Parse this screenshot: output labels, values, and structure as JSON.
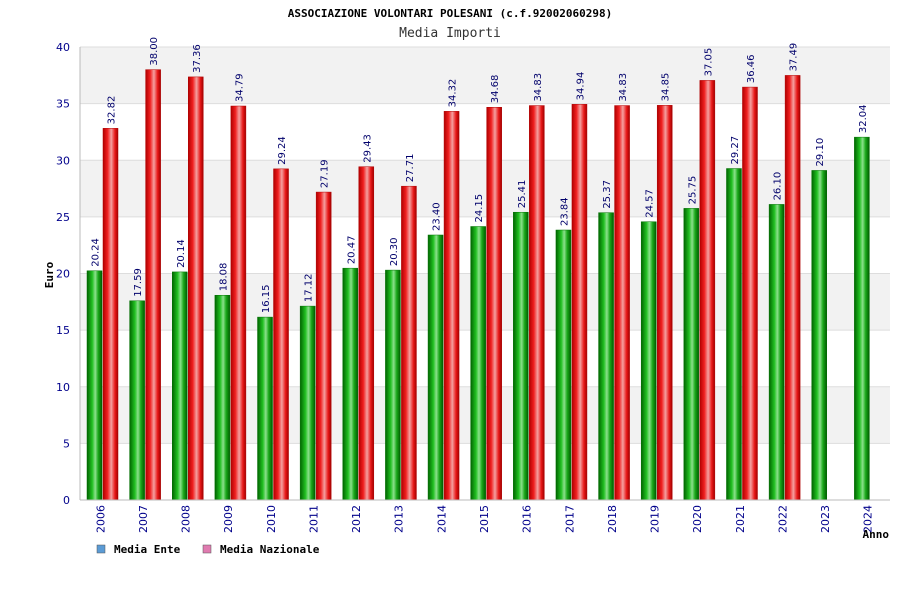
{
  "chart_data": {
    "type": "bar",
    "title": "ASSOCIAZIONE VOLONTARI POLESANI (c.f.92002060298)",
    "subtitle": "Media Importi",
    "ylabel": "Euro",
    "xlabel": "Anno",
    "ylim": [
      0,
      40
    ],
    "yticks": [
      0,
      5,
      10,
      15,
      20,
      25,
      30,
      35,
      40
    ],
    "categories": [
      "2006",
      "2007",
      "2008",
      "2009",
      "2010",
      "2011",
      "2012",
      "2013",
      "2014",
      "2015",
      "2016",
      "2017",
      "2018",
      "2019",
      "2020",
      "2021",
      "2022",
      "2023",
      "2024"
    ],
    "series": [
      {
        "name": "Media Ente",
        "color": "#00a000",
        "legend_color": "#5b9bd5",
        "values": [
          20.24,
          17.59,
          20.14,
          18.08,
          16.15,
          17.12,
          20.47,
          20.3,
          23.4,
          24.15,
          25.41,
          23.84,
          25.37,
          24.57,
          25.75,
          29.27,
          26.1,
          29.1,
          32.04
        ],
        "labels": [
          "20.24",
          "17.59",
          "20.14",
          "18.08",
          "16.15",
          "17.12",
          "20.47",
          "20.30",
          "23.40",
          "24.15",
          "25.41",
          "23.84",
          "25.37",
          "24.57",
          "25.75",
          "29.27",
          "26.10",
          "29.10",
          "32.04"
        ]
      },
      {
        "name": "Media Nazionale",
        "color": "#e01010",
        "legend_color": "#e07bb0",
        "values": [
          32.82,
          38.0,
          37.36,
          34.79,
          29.24,
          27.19,
          29.43,
          27.71,
          34.32,
          34.68,
          34.83,
          34.94,
          34.83,
          34.85,
          37.05,
          36.46,
          37.49,
          null,
          null
        ],
        "labels": [
          "32.82",
          "38.00",
          "37.36",
          "34.79",
          "29.24",
          "27.19",
          "29.43",
          "27.71",
          "34.32",
          "34.68",
          "34.83",
          "34.94",
          "34.83",
          "34.85",
          "37.05",
          "36.46",
          "37.49",
          "",
          ""
        ]
      }
    ],
    "grid": true,
    "legend_position": "bottom-left"
  }
}
